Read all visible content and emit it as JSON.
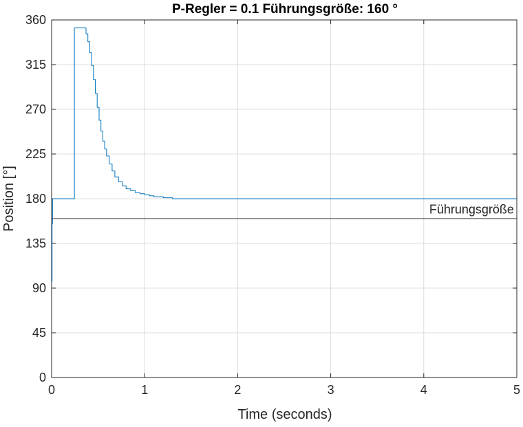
{
  "chart_data": {
    "type": "line",
    "title": "P-Regler =  0.1     Führungsgröße:  160 °",
    "xlabel": "Time (seconds)",
    "ylabel": "Position [°]",
    "xlim": [
      0,
      5
    ],
    "ylim": [
      0,
      360
    ],
    "xticks": [
      0,
      1,
      2,
      3,
      4,
      5
    ],
    "yticks": [
      0,
      45,
      90,
      135,
      180,
      225,
      270,
      315,
      360
    ],
    "grid": true,
    "series": [
      {
        "color": "#0072BD",
        "step": true,
        "x": [
          0,
          0.005,
          0.01,
          0.24,
          0.245,
          0.35,
          0.37,
          0.39,
          0.41,
          0.43,
          0.45,
          0.47,
          0.49,
          0.51,
          0.53,
          0.55,
          0.57,
          0.59,
          0.62,
          0.65,
          0.68,
          0.72,
          0.76,
          0.8,
          0.85,
          0.9,
          0.95,
          1.0,
          1.05,
          1.1,
          1.15,
          1.2,
          1.25,
          1.3,
          1.35,
          1.4,
          5.0
        ],
        "y": [
          97,
          155,
          180,
          180,
          352,
          352,
          346,
          338,
          327,
          314,
          300,
          286,
          272,
          259,
          248,
          238,
          230,
          223,
          215,
          208,
          202,
          197,
          193,
          190,
          188,
          186,
          185,
          184,
          183,
          182,
          182,
          181,
          181,
          180,
          180,
          180,
          180
        ]
      },
      {
        "color": "#404040",
        "x": [
          0,
          5
        ],
        "y": [
          160,
          160
        ]
      }
    ],
    "annotations": [
      {
        "text": "Führungsgröße",
        "x": 4.97,
        "y": 165
      }
    ]
  }
}
